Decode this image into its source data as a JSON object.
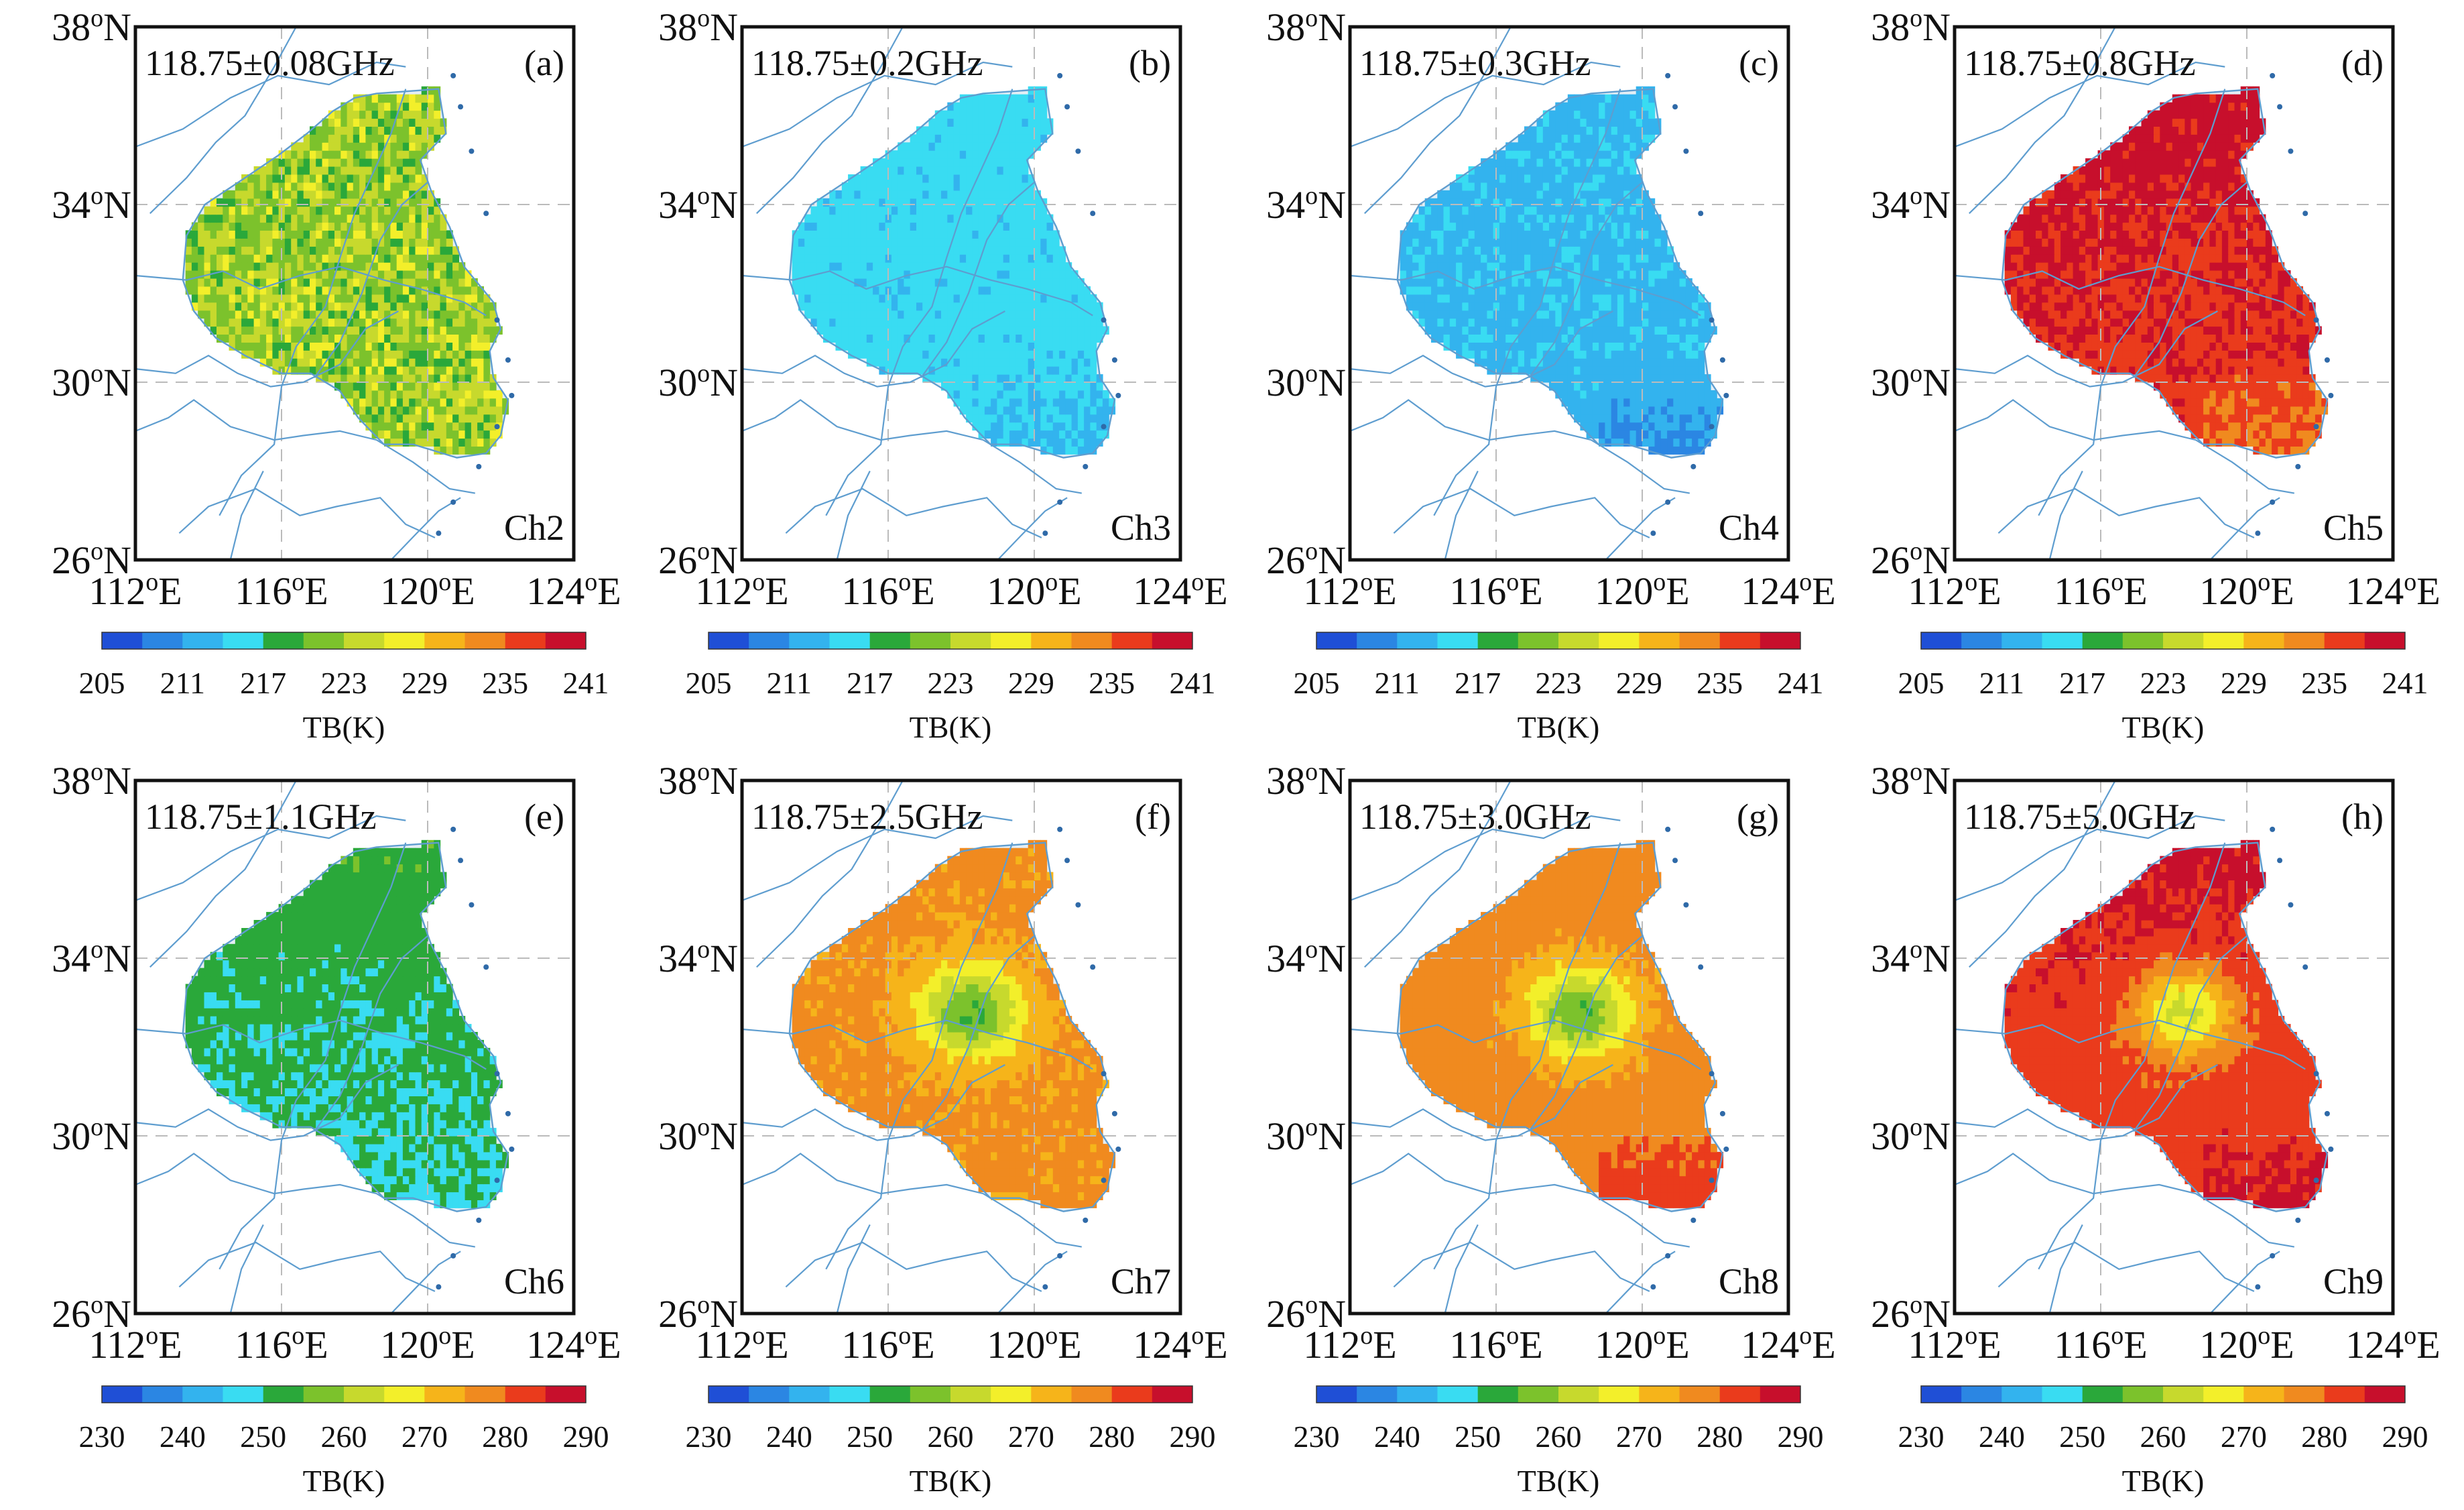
{
  "figure": {
    "colormap": [
      "#1f4fd6",
      "#2b86e3",
      "#33b3ee",
      "#39dcf2",
      "#2aa83a",
      "#7cc22c",
      "#c7d92d",
      "#f3ef2a",
      "#f6b41a",
      "#f08a1f",
      "#ea3b1c",
      "#c70f2c"
    ],
    "colors": {
      "land": "#e4eef5",
      "river": "#5e9dcf",
      "grid": "#bbbbbb",
      "frame": "#111111"
    }
  },
  "chart_data": [
    {
      "type": "heatmap",
      "panel": "(a)",
      "frequency": "118.75±0.08GHz",
      "channel": "Ch2",
      "xlabel": "",
      "ylabel": "",
      "lon_range": [
        112,
        124
      ],
      "lat_range": [
        26,
        38
      ],
      "x_ticks": [
        {
          "label": "112",
          "sup": "o",
          "suf": "E"
        },
        {
          "label": "116",
          "sup": "o",
          "suf": "E"
        },
        {
          "label": "120",
          "sup": "o",
          "suf": "E"
        },
        {
          "label": "124",
          "sup": "o",
          "suf": "E"
        }
      ],
      "y_ticks": [
        {
          "label": "38",
          "sup": "o",
          "suf": "N"
        },
        {
          "label": "34",
          "sup": "o",
          "suf": "N"
        },
        {
          "label": "30",
          "sup": "o",
          "suf": "N"
        },
        {
          "label": "26",
          "sup": "o",
          "suf": "N"
        }
      ],
      "colorbar": {
        "label": "TB(K)",
        "range": [
          205,
          241
        ],
        "ticks": [
          "205",
          "211",
          "217",
          "223",
          "229",
          "235",
          "241"
        ]
      },
      "fields": {
        "base": 223,
        "north": 0,
        "south": 0,
        "center": 0,
        "noise": 4
      },
      "grid": true
    },
    {
      "type": "heatmap",
      "panel": "(b)",
      "frequency": "118.75±0.2GHz",
      "channel": "Ch3",
      "xlabel": "",
      "ylabel": "",
      "lon_range": [
        112,
        124
      ],
      "lat_range": [
        26,
        38
      ],
      "x_ticks": [
        {
          "label": "112",
          "sup": "o",
          "suf": "E"
        },
        {
          "label": "116",
          "sup": "o",
          "suf": "E"
        },
        {
          "label": "120",
          "sup": "o",
          "suf": "E"
        },
        {
          "label": "124",
          "sup": "o",
          "suf": "E"
        }
      ],
      "y_ticks": [
        {
          "label": "38",
          "sup": "o",
          "suf": "N"
        },
        {
          "label": "34",
          "sup": "o",
          "suf": "N"
        },
        {
          "label": "30",
          "sup": "o",
          "suf": "N"
        },
        {
          "label": "26",
          "sup": "o",
          "suf": "N"
        }
      ],
      "colorbar": {
        "label": "TB(K)",
        "range": [
          205,
          241
        ],
        "ticks": [
          "205",
          "211",
          "217",
          "223",
          "229",
          "235",
          "241"
        ]
      },
      "fields": {
        "base": 215,
        "north": 0,
        "south": -1.5,
        "center": 0,
        "noise": 1.2
      },
      "grid": true
    },
    {
      "type": "heatmap",
      "panel": "(c)",
      "frequency": "118.75±0.3GHz",
      "channel": "Ch4",
      "xlabel": "",
      "ylabel": "",
      "lon_range": [
        112,
        124
      ],
      "lat_range": [
        26,
        38
      ],
      "x_ticks": [
        {
          "label": "112",
          "sup": "o",
          "suf": "E"
        },
        {
          "label": "116",
          "sup": "o",
          "suf": "E"
        },
        {
          "label": "120",
          "sup": "o",
          "suf": "E"
        },
        {
          "label": "124",
          "sup": "o",
          "suf": "E"
        }
      ],
      "y_ticks": [
        {
          "label": "38",
          "sup": "o",
          "suf": "N"
        },
        {
          "label": "34",
          "sup": "o",
          "suf": "N"
        },
        {
          "label": "30",
          "sup": "o",
          "suf": "N"
        },
        {
          "label": "26",
          "sup": "o",
          "suf": "N"
        }
      ],
      "colorbar": {
        "label": "TB(K)",
        "range": [
          205,
          241
        ],
        "ticks": [
          "205",
          "211",
          "217",
          "223",
          "229",
          "235",
          "241"
        ]
      },
      "fields": {
        "base": 213.5,
        "north": 0,
        "south": -3,
        "center": 0,
        "noise": 1
      },
      "grid": true
    },
    {
      "type": "heatmap",
      "panel": "(d)",
      "frequency": "118.75±0.8GHz",
      "channel": "Ch5",
      "xlabel": "",
      "ylabel": "",
      "lon_range": [
        112,
        124
      ],
      "lat_range": [
        26,
        38
      ],
      "x_ticks": [
        {
          "label": "112",
          "sup": "o",
          "suf": "E"
        },
        {
          "label": "116",
          "sup": "o",
          "suf": "E"
        },
        {
          "label": "120",
          "sup": "o",
          "suf": "E"
        },
        {
          "label": "124",
          "sup": "o",
          "suf": "E"
        }
      ],
      "y_ticks": [
        {
          "label": "38",
          "sup": "o",
          "suf": "N"
        },
        {
          "label": "34",
          "sup": "o",
          "suf": "N"
        },
        {
          "label": "30",
          "sup": "o",
          "suf": "N"
        },
        {
          "label": "26",
          "sup": "o",
          "suf": "N"
        }
      ],
      "colorbar": {
        "label": "TB(K)",
        "range": [
          205,
          241
        ],
        "ticks": [
          "205",
          "211",
          "217",
          "223",
          "229",
          "235",
          "241"
        ]
      },
      "fields": {
        "base": 238,
        "north": 1.5,
        "south": -2.5,
        "center": -1,
        "noise": 1.8
      },
      "grid": true
    },
    {
      "type": "heatmap",
      "panel": "(e)",
      "frequency": "118.75±1.1GHz",
      "channel": "Ch6",
      "xlabel": "",
      "ylabel": "",
      "lon_range": [
        112,
        124
      ],
      "lat_range": [
        26,
        38
      ],
      "x_ticks": [
        {
          "label": "112",
          "sup": "o",
          "suf": "E"
        },
        {
          "label": "116",
          "sup": "o",
          "suf": "E"
        },
        {
          "label": "120",
          "sup": "o",
          "suf": "E"
        },
        {
          "label": "124",
          "sup": "o",
          "suf": "E"
        }
      ],
      "y_ticks": [
        {
          "label": "38",
          "sup": "o",
          "suf": "N"
        },
        {
          "label": "34",
          "sup": "o",
          "suf": "N"
        },
        {
          "label": "30",
          "sup": "o",
          "suf": "N"
        },
        {
          "label": "26",
          "sup": "o",
          "suf": "N"
        }
      ],
      "colorbar": {
        "label": "TB(K)",
        "range": [
          230,
          290
        ],
        "ticks": [
          "230",
          "240",
          "250",
          "260",
          "270",
          "280",
          "290"
        ]
      },
      "fields": {
        "base": 251,
        "north": 2,
        "south": 0,
        "center": -1,
        "noise": 2.2
      },
      "grid": true
    },
    {
      "type": "heatmap",
      "panel": "(f)",
      "frequency": "118.75±2.5GHz",
      "channel": "Ch7",
      "xlabel": "",
      "ylabel": "",
      "lon_range": [
        112,
        124
      ],
      "lat_range": [
        26,
        38
      ],
      "x_ticks": [
        {
          "label": "112",
          "sup": "o",
          "suf": "E"
        },
        {
          "label": "116",
          "sup": "o",
          "suf": "E"
        },
        {
          "label": "120",
          "sup": "o",
          "suf": "E"
        },
        {
          "label": "124",
          "sup": "o",
          "suf": "E"
        }
      ],
      "y_ticks": [
        {
          "label": "38",
          "sup": "o",
          "suf": "N"
        },
        {
          "label": "34",
          "sup": "o",
          "suf": "N"
        },
        {
          "label": "30",
          "sup": "o",
          "suf": "N"
        },
        {
          "label": "26",
          "sup": "o",
          "suf": "N"
        }
      ],
      "colorbar": {
        "label": "TB(K)",
        "range": [
          230,
          290
        ],
        "ticks": [
          "230",
          "240",
          "250",
          "260",
          "270",
          "280",
          "290"
        ]
      },
      "fields": {
        "base": 276,
        "north": 0,
        "south": 0,
        "center": -22,
        "noise": 1.5
      },
      "grid": true
    },
    {
      "type": "heatmap",
      "panel": "(g)",
      "frequency": "118.75±3.0GHz",
      "channel": "Ch8",
      "xlabel": "",
      "ylabel": "",
      "lon_range": [
        112,
        124
      ],
      "lat_range": [
        26,
        38
      ],
      "x_ticks": [
        {
          "label": "112",
          "sup": "o",
          "suf": "E"
        },
        {
          "label": "116",
          "sup": "o",
          "suf": "E"
        },
        {
          "label": "120",
          "sup": "o",
          "suf": "E"
        },
        {
          "label": "124",
          "sup": "o",
          "suf": "E"
        }
      ],
      "y_ticks": [
        {
          "label": "38",
          "sup": "o",
          "suf": "N"
        },
        {
          "label": "34",
          "sup": "o",
          "suf": "N"
        },
        {
          "label": "30",
          "sup": "o",
          "suf": "N"
        },
        {
          "label": "26",
          "sup": "o",
          "suf": "N"
        }
      ],
      "colorbar": {
        "label": "TB(K)",
        "range": [
          230,
          290
        ],
        "ticks": [
          "230",
          "240",
          "250",
          "260",
          "270",
          "280",
          "290"
        ]
      },
      "fields": {
        "base": 277,
        "north": 0,
        "south": 6,
        "center": -22,
        "noise": 1.5
      },
      "grid": true
    },
    {
      "type": "heatmap",
      "panel": "(h)",
      "frequency": "118.75±5.0GHz",
      "channel": "Ch9",
      "xlabel": "",
      "ylabel": "",
      "lon_range": [
        112,
        124
      ],
      "lat_range": [
        26,
        38
      ],
      "x_ticks": [
        {
          "label": "112",
          "sup": "o",
          "suf": "E"
        },
        {
          "label": "116",
          "sup": "o",
          "suf": "E"
        },
        {
          "label": "120",
          "sup": "o",
          "suf": "E"
        },
        {
          "label": "124",
          "sup": "o",
          "suf": "E"
        }
      ],
      "y_ticks": [
        {
          "label": "38",
          "sup": "o",
          "suf": "N"
        },
        {
          "label": "34",
          "sup": "o",
          "suf": "N"
        },
        {
          "label": "30",
          "sup": "o",
          "suf": "N"
        },
        {
          "label": "26",
          "sup": "o",
          "suf": "N"
        }
      ],
      "colorbar": {
        "label": "TB(K)",
        "range": [
          230,
          290
        ],
        "ticks": [
          "230",
          "240",
          "250",
          "260",
          "270",
          "280",
          "290"
        ]
      },
      "fields": {
        "base": 283,
        "north": 3,
        "south": 6,
        "center": -20,
        "noise": 1.8
      },
      "grid": true
    }
  ]
}
